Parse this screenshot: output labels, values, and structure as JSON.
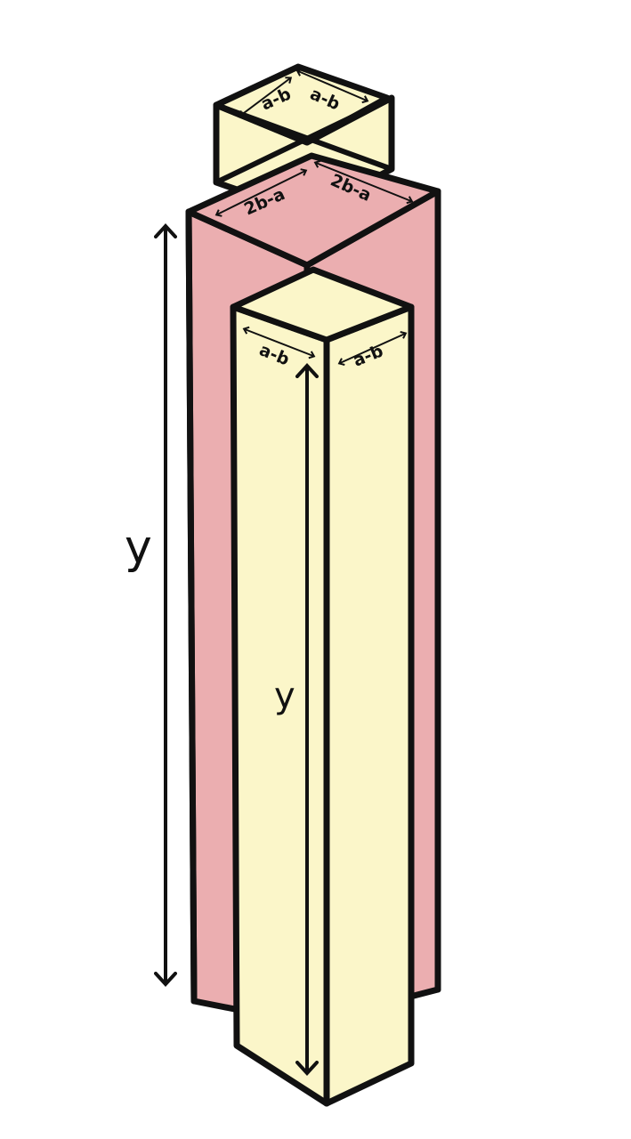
{
  "colors": {
    "cream": "#fbf6c9",
    "pink": "#ebaeb0",
    "outline": "#111111"
  },
  "labels": {
    "top_block_left": "a-b",
    "top_block_right": "a-b",
    "middle_block_left": "2b-a",
    "middle_block_right": "2b-a",
    "front_block_left": "a-b",
    "front_block_right": "a-b",
    "outer_height": "y",
    "front_height": "y"
  }
}
